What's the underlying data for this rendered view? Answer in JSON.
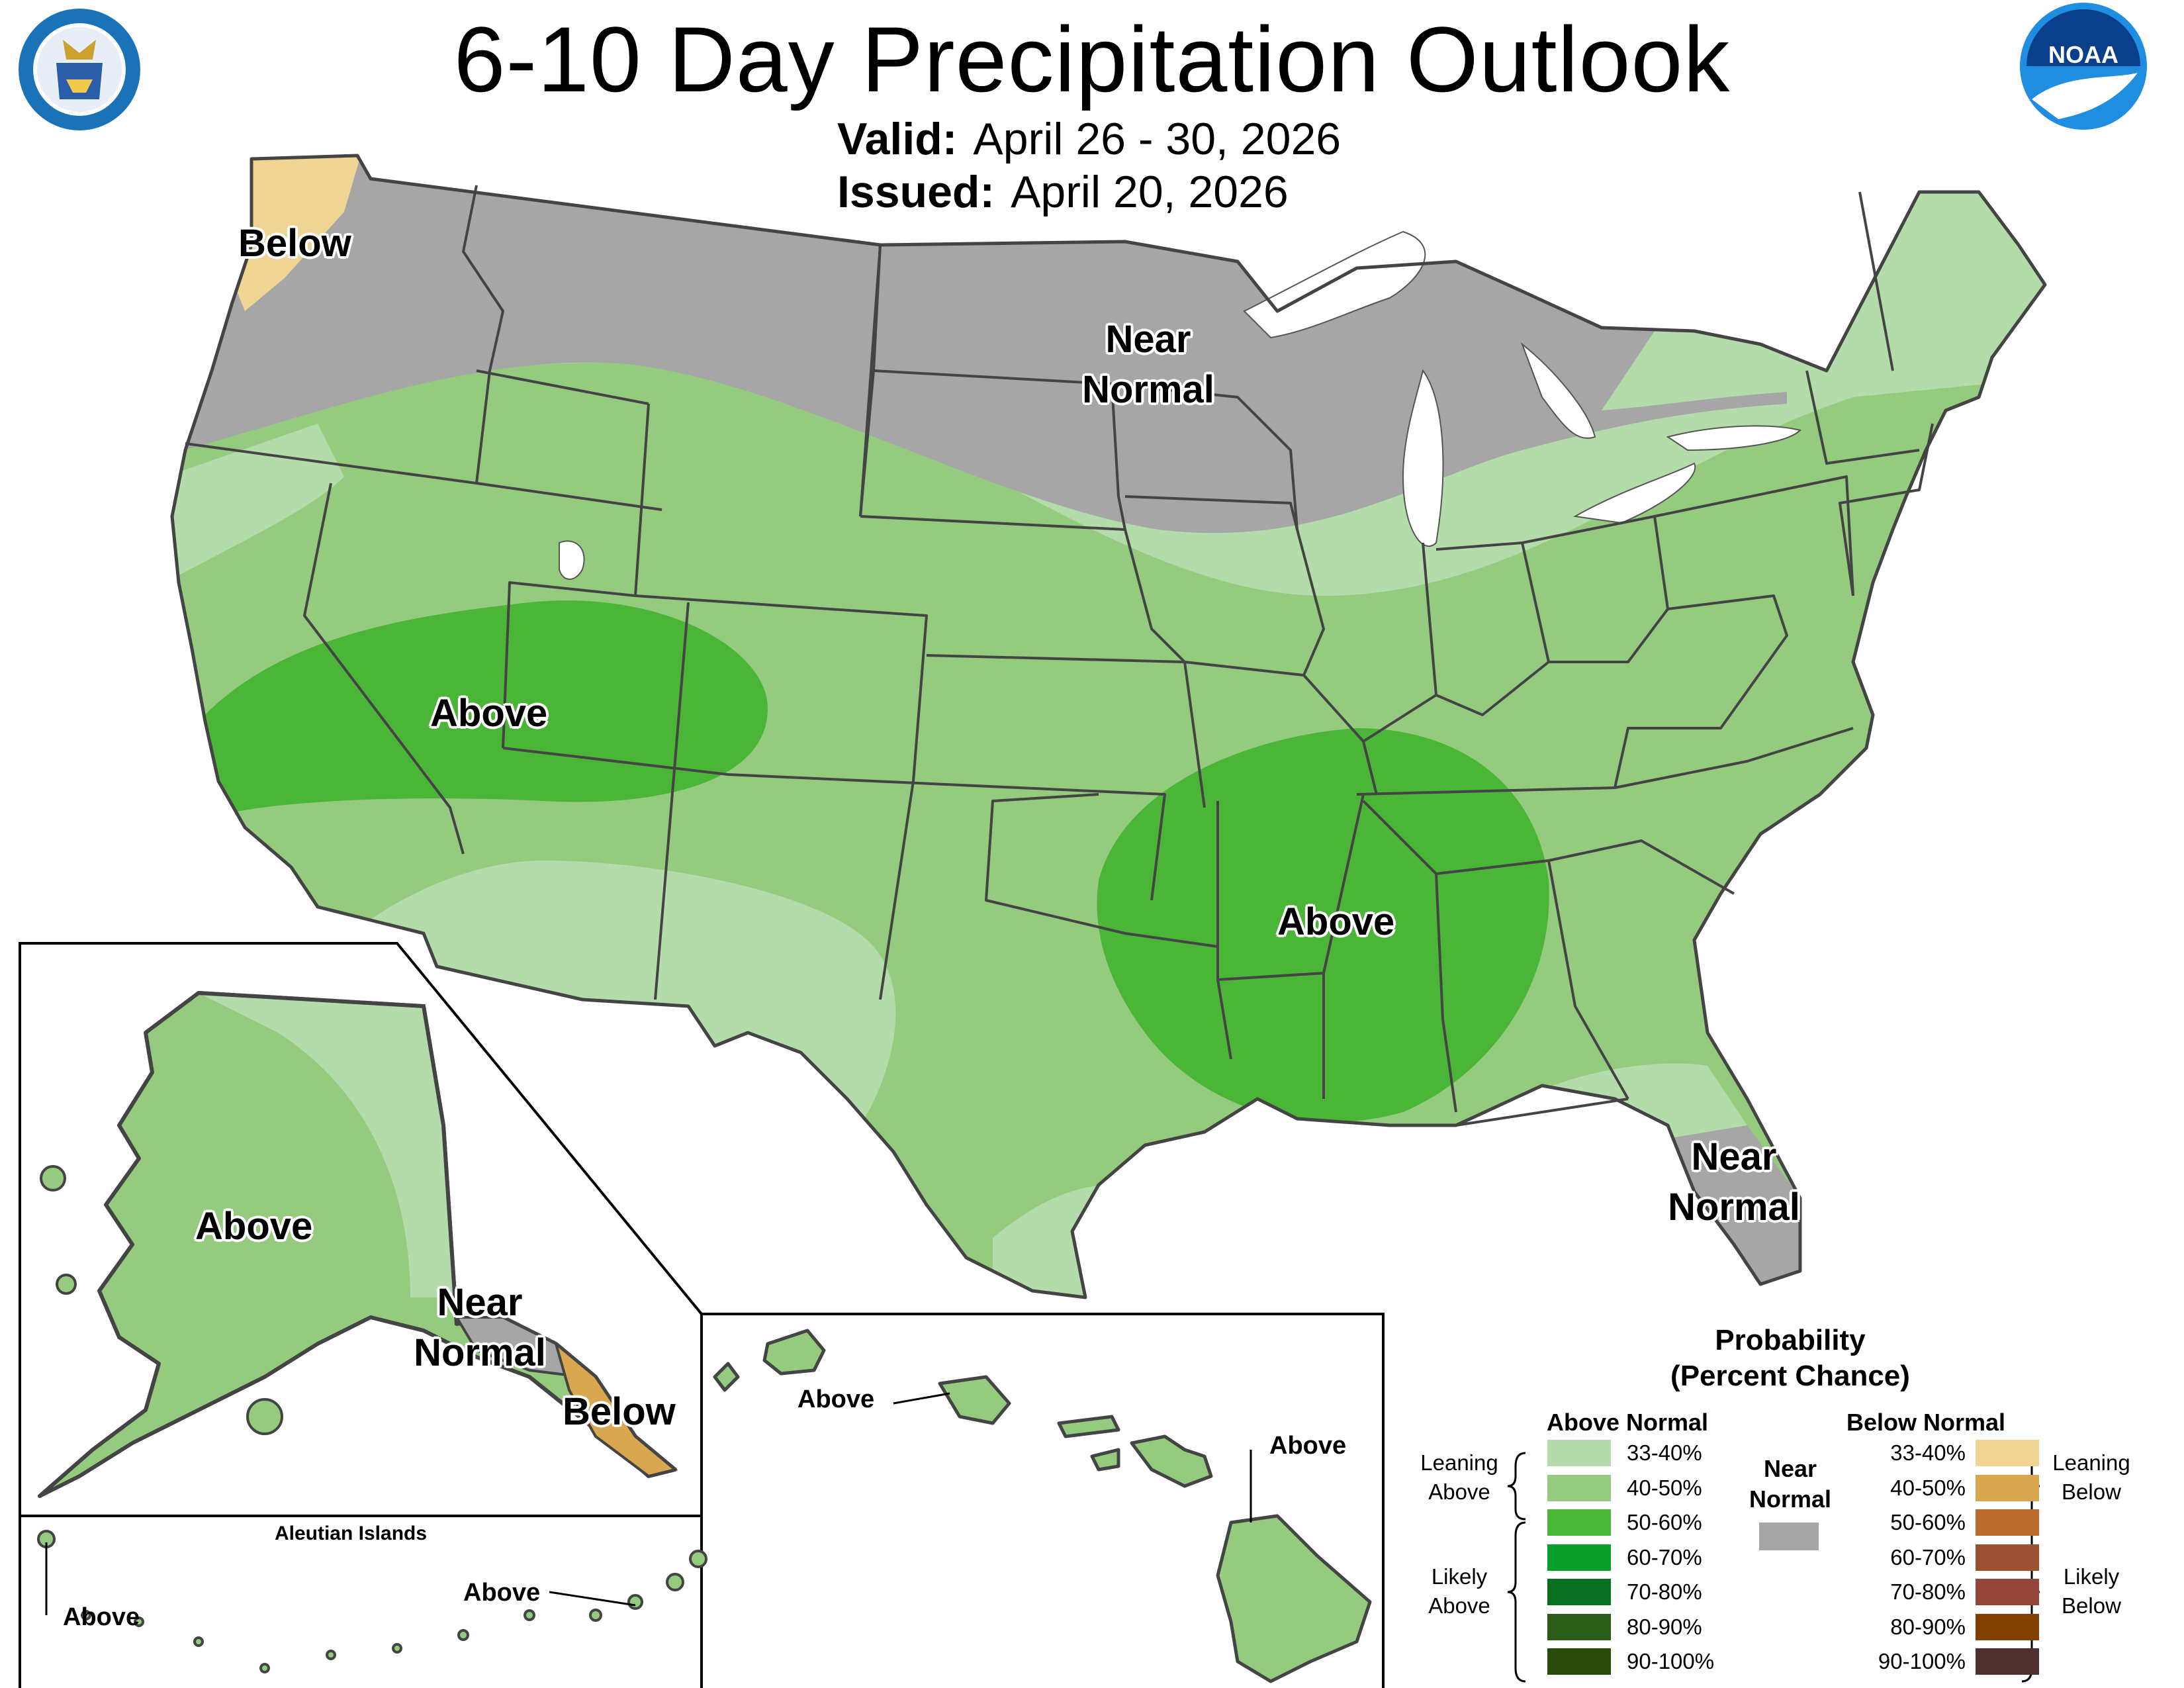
{
  "header": {
    "title": "6-10 Day Precipitation Outlook",
    "valid_label": "Valid:",
    "valid_dates": "April 26 - 30, 2026",
    "issued_label": "Issued:",
    "issued_date": "April 20, 2026"
  },
  "logos": {
    "commerce_seal_text": "DEPARTMENT OF COMMERCE · UNITED STATES OF AMERICA",
    "noaa_text": "NOAA"
  },
  "map_labels": {
    "conus_below_nw": "Below",
    "conus_near_normal_north_1": "Near",
    "conus_near_normal_north_2": "Normal",
    "conus_above_west": "Above",
    "conus_above_south": "Above",
    "conus_near_normal_fl_1": "Near",
    "conus_near_normal_fl_2": "Normal",
    "alaska_above": "Above",
    "alaska_near_1": "Near",
    "alaska_near_2": "Normal",
    "alaska_below": "Below",
    "aleutian_title": "Aleutian Islands",
    "aleutian_above_west": "Above",
    "aleutian_above_east": "Above",
    "hawaii_above_oahu": "Above",
    "hawaii_above_big_island": "Above"
  },
  "legend": {
    "title_1": "Probability",
    "title_2": "(Percent Chance)",
    "above_header": "Above Normal",
    "below_header": "Below Normal",
    "near_header_1": "Near",
    "near_header_2": "Normal",
    "near_color": "#a6a6a6",
    "above_rows": [
      {
        "range": "33-40%",
        "color": "#b4dcab"
      },
      {
        "range": "40-50%",
        "color": "#94cb7e"
      },
      {
        "range": "50-60%",
        "color": "#4ab536"
      },
      {
        "range": "60-70%",
        "color": "#079e2a"
      },
      {
        "range": "70-80%",
        "color": "#077020"
      },
      {
        "range": "80-90%",
        "color": "#2a5c17"
      },
      {
        "range": "90-100%",
        "color": "#284b0b"
      }
    ],
    "below_rows": [
      {
        "range": "33-40%",
        "color": "#f0d493"
      },
      {
        "range": "40-50%",
        "color": "#d8a74f"
      },
      {
        "range": "50-60%",
        "color": "#bb6b30"
      },
      {
        "range": "60-70%",
        "color": "#9b5031"
      },
      {
        "range": "70-80%",
        "color": "#934639"
      },
      {
        "range": "80-90%",
        "color": "#804000"
      },
      {
        "range": "90-100%",
        "color": "#4f2f2f"
      }
    ],
    "leaning_above_1": "Leaning",
    "leaning_above_2": "Above",
    "likely_above_1": "Likely",
    "likely_above_2": "Above",
    "leaning_below_1": "Leaning",
    "leaning_below_2": "Below",
    "likely_below_1": "Likely",
    "likely_below_2": "Below"
  }
}
